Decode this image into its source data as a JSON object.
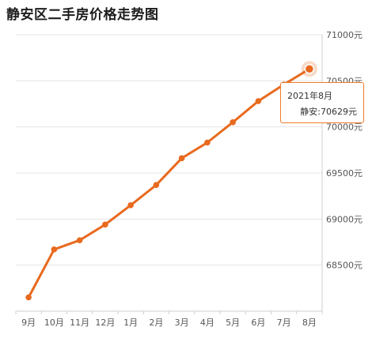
{
  "title": "静安区二手房价格走势图",
  "colors": {
    "line": "#e86a1e",
    "point": "#e86a1e",
    "grid": "#e4e4e4",
    "axis_text": "#555555"
  },
  "chart_data": {
    "type": "line",
    "title": "静安区二手房价格走势图",
    "categories": [
      "9月",
      "10月",
      "11月",
      "12月",
      "1月",
      "2月",
      "3月",
      "4月",
      "5月",
      "6月",
      "7月",
      "8月"
    ],
    "series": [
      {
        "name": "静安",
        "values": [
          68150,
          68670,
          68770,
          68940,
          69150,
          69370,
          69660,
          69830,
          70050,
          70280,
          70460,
          70629
        ]
      }
    ],
    "ylim": [
      68000,
      71000
    ],
    "yticks": [
      "68500元",
      "69000元",
      "69500元",
      "70000元",
      "70500元",
      "71000元"
    ],
    "ytick_values": [
      68500,
      69000,
      69500,
      70000,
      70500,
      71000
    ],
    "yaxis_position": "right",
    "grid": true,
    "highlight_index": 11
  },
  "tooltip": {
    "date": "2021年8月",
    "value_text": "静安:70629元"
  }
}
